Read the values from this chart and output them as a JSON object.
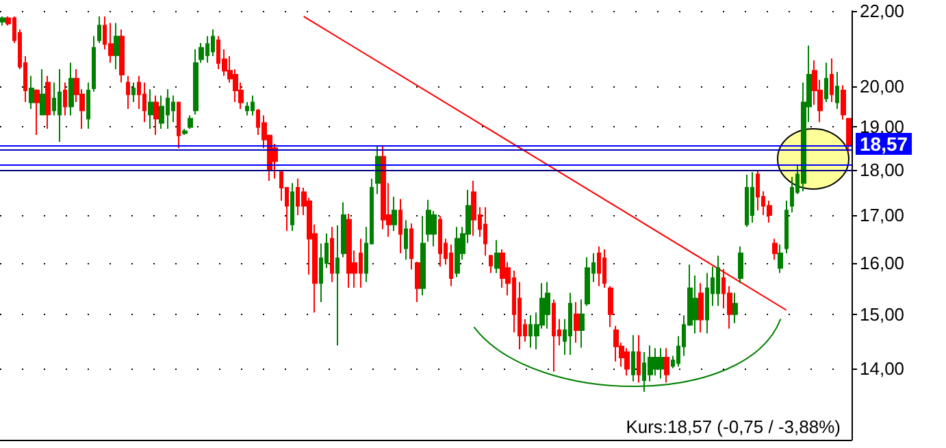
{
  "chart_data": {
    "type": "candlestick",
    "log": true,
    "grid": "y",
    "tick_labels": "y",
    "ylim": [
      12.8,
      22
    ],
    "yticks": [
      {
        "value": 14,
        "label": "14,00"
      },
      {
        "value": 15,
        "label": "15,00"
      },
      {
        "value": 16,
        "label": "16,00"
      },
      {
        "value": 17,
        "label": "17,00"
      },
      {
        "value": 18,
        "label": "18,00"
      },
      {
        "value": 19,
        "label": "19,00"
      },
      {
        "value": 20,
        "label": "20,00"
      },
      {
        "value": 22,
        "label": "22,00"
      }
    ],
    "categories": [
      null,
      null,
      null,
      null,
      null,
      null,
      null,
      null,
      null,
      null,
      null,
      null,
      null,
      null,
      null,
      null,
      null,
      null,
      null,
      null,
      null,
      null,
      null,
      null,
      null,
      null,
      null,
      null,
      null,
      null,
      null,
      null,
      null,
      null,
      null,
      null,
      null,
      null,
      null,
      null,
      null,
      null,
      null,
      null,
      null,
      null,
      null,
      null,
      null,
      null,
      null,
      null,
      null,
      null,
      null,
      null,
      null,
      null,
      null,
      null,
      null,
      null,
      null,
      null,
      null,
      null,
      null,
      null,
      null,
      null,
      null,
      null,
      null,
      null,
      null,
      null,
      null,
      null,
      null,
      null,
      null,
      null,
      null,
      null,
      null,
      null,
      null,
      null,
      null,
      null,
      null,
      null,
      null,
      null,
      null,
      null,
      null,
      null,
      null,
      null,
      null,
      null,
      null,
      null,
      null,
      null,
      null,
      null,
      null,
      null,
      null,
      null,
      null,
      null,
      null,
      null,
      null,
      null,
      null,
      null,
      null,
      null,
      null,
      null,
      null,
      null,
      null,
      null,
      null,
      null,
      null,
      null,
      null,
      null,
      null,
      null,
      null,
      null,
      null,
      null,
      null,
      null,
      null,
      null,
      null,
      null,
      null,
      null,
      null,
      null
    ],
    "ohlc": [
      [
        21.7,
        21.85,
        21.6,
        21.8
      ],
      [
        21.8,
        21.85,
        21.6,
        21.65
      ],
      [
        21.8,
        21.85,
        21.13,
        21.2
      ],
      [
        21.4,
        21.49,
        20.44,
        20.5
      ],
      [
        20.6,
        20.78,
        19.61,
        19.9
      ],
      [
        19.6,
        20.27,
        19.44,
        19.95
      ],
      [
        19.9,
        19.93,
        18.81,
        19.6
      ],
      [
        19.3,
        20.44,
        19.28,
        19.8
      ],
      [
        20.1,
        20.27,
        18.96,
        19.3
      ],
      [
        19.4,
        20.1,
        19.28,
        19.7
      ],
      [
        19.3,
        20.44,
        18.65,
        19.85
      ],
      [
        19.9,
        20.1,
        19.28,
        19.5
      ],
      [
        19.5,
        20.61,
        19.28,
        20.2
      ],
      [
        20.2,
        20.44,
        19.61,
        19.8
      ],
      [
        19.8,
        19.93,
        18.96,
        19.4
      ],
      [
        19.2,
        20.1,
        18.96,
        19.9
      ],
      [
        19.95,
        21.31,
        19.87,
        21.0
      ],
      [
        21.2,
        21.85,
        21.13,
        21.6
      ],
      [
        21.6,
        21.85,
        20.96,
        21.1
      ],
      [
        21.1,
        21.67,
        20.61,
        20.8
      ],
      [
        20.8,
        21.67,
        20.44,
        21.3
      ],
      [
        21.3,
        21.49,
        20.1,
        20.3
      ],
      [
        20.1,
        20.27,
        19.44,
        19.8
      ],
      [
        19.8,
        20.1,
        19.61,
        19.95
      ],
      [
        20.1,
        20.27,
        19.44,
        19.8
      ],
      [
        19.8,
        20.1,
        19.12,
        19.4
      ],
      [
        19.3,
        19.93,
        18.96,
        19.6
      ],
      [
        19.6,
        19.77,
        18.81,
        19.2
      ],
      [
        19.1,
        19.77,
        18.96,
        19.5
      ],
      [
        19.3,
        19.93,
        18.96,
        19.7
      ],
      [
        19.4,
        19.77,
        19.12,
        19.6
      ],
      [
        19.6,
        19.61,
        18.5,
        18.8
      ],
      [
        18.85,
        18.96,
        18.81,
        18.9
      ],
      [
        19.0,
        19.28,
        18.96,
        19.2
      ],
      [
        19.4,
        20.96,
        19.3,
        20.6
      ],
      [
        20.7,
        21.13,
        20.61,
        21.0
      ],
      [
        20.8,
        21.31,
        20.61,
        21.1
      ],
      [
        20.9,
        21.49,
        20.78,
        21.3
      ],
      [
        21.2,
        21.31,
        20.44,
        20.6
      ],
      [
        20.7,
        20.96,
        20.27,
        20.4
      ],
      [
        20.4,
        20.78,
        20.1,
        20.2
      ],
      [
        20.3,
        20.44,
        19.61,
        19.9
      ],
      [
        19.9,
        20.1,
        19.44,
        19.6
      ],
      [
        19.4,
        19.61,
        19.28,
        19.5
      ],
      [
        19.4,
        19.77,
        19.28,
        19.6
      ],
      [
        19.4,
        19.44,
        18.81,
        19.0
      ],
      [
        19.1,
        19.28,
        18.5,
        18.7
      ],
      [
        18.8,
        18.81,
        17.75,
        18.0
      ],
      [
        18.5,
        18.6,
        17.8,
        18.2
      ],
      [
        17.95,
        17.96,
        17.31,
        17.6
      ],
      [
        17.6,
        17.6,
        16.66,
        17.2
      ],
      [
        16.8,
        17.7,
        16.66,
        17.5
      ],
      [
        17.6,
        17.8,
        17.0,
        17.2
      ],
      [
        17.5,
        17.6,
        17.0,
        17.2
      ],
      [
        17.3,
        17.37,
        15.77,
        16.5
      ],
      [
        16.6,
        16.8,
        15.03,
        15.6
      ],
      [
        15.6,
        16.4,
        15.23,
        16.1
      ],
      [
        16.0,
        16.61,
        15.9,
        16.4
      ],
      [
        16.5,
        16.75,
        15.62,
        15.8
      ],
      [
        15.8,
        16.78,
        14.42,
        16.1
      ],
      [
        16.2,
        17.28,
        16.12,
        17.0
      ],
      [
        16.9,
        17.03,
        15.51,
        15.8
      ],
      [
        16.0,
        16.26,
        15.51,
        15.8
      ],
      [
        16.2,
        16.5,
        15.51,
        15.8
      ],
      [
        15.8,
        16.75,
        15.62,
        16.4
      ],
      [
        16.4,
        17.8,
        16.38,
        17.6
      ],
      [
        17.7,
        18.56,
        17.46,
        18.3
      ],
      [
        18.3,
        18.56,
        16.7,
        16.9
      ],
      [
        17.0,
        17.7,
        16.54,
        16.8
      ],
      [
        16.8,
        17.4,
        16.66,
        17.1
      ],
      [
        17.1,
        17.35,
        16.2,
        16.6
      ],
      [
        16.3,
        16.89,
        16.07,
        16.7
      ],
      [
        16.7,
        16.82,
        15.87,
        16.1
      ],
      [
        16.0,
        16.03,
        15.23,
        15.5
      ],
      [
        15.5,
        16.98,
        15.36,
        16.4
      ],
      [
        16.6,
        17.33,
        16.44,
        17.1
      ],
      [
        16.6,
        17.09,
        16.34,
        17.0
      ],
      [
        16.9,
        16.98,
        15.93,
        16.2
      ],
      [
        16.4,
        16.5,
        15.97,
        16.1
      ],
      [
        16.2,
        16.38,
        15.54,
        15.7
      ],
      [
        15.8,
        16.75,
        15.72,
        16.5
      ],
      [
        16.2,
        16.75,
        16.07,
        16.6
      ],
      [
        16.6,
        17.55,
        16.41,
        17.2
      ],
      [
        17.5,
        17.75,
        16.56,
        16.9
      ],
      [
        17.0,
        17.17,
        16.54,
        16.7
      ],
      [
        16.8,
        17.17,
        16.15,
        16.4
      ],
      [
        16.15,
        16.15,
        15.8,
        15.95
      ],
      [
        15.9,
        16.47,
        15.8,
        16.2
      ],
      [
        16.2,
        16.28,
        15.51,
        15.7
      ],
      [
        15.9,
        16.02,
        15.36,
        15.6
      ],
      [
        15.7,
        15.85,
        14.66,
        15.0
      ],
      [
        15.3,
        15.62,
        14.35,
        14.6
      ],
      [
        14.8,
        14.91,
        14.49,
        14.6
      ],
      [
        14.6,
        14.98,
        14.38,
        14.8
      ],
      [
        14.6,
        15.03,
        14.35,
        14.8
      ],
      [
        14.8,
        15.6,
        14.73,
        15.3
      ],
      [
        15.0,
        15.62,
        14.73,
        15.4
      ],
      [
        15.2,
        15.28,
        13.95,
        14.6
      ],
      [
        14.7,
        14.91,
        14.42,
        14.6
      ],
      [
        14.5,
        14.91,
        14.25,
        14.7
      ],
      [
        14.6,
        15.41,
        14.25,
        15.2
      ],
      [
        15.0,
        15.23,
        14.47,
        14.7
      ],
      [
        14.7,
        15.28,
        14.38,
        15.0
      ],
      [
        15.2,
        16.12,
        15.16,
        15.9
      ],
      [
        15.8,
        16.2,
        15.62,
        16.0
      ],
      [
        16.2,
        16.34,
        15.54,
        15.8
      ],
      [
        16.1,
        16.28,
        15.51,
        15.6
      ],
      [
        15.5,
        15.54,
        14.76,
        15.0
      ],
      [
        14.7,
        14.78,
        14.13,
        14.4
      ],
      [
        14.4,
        14.47,
        14.04,
        14.2
      ],
      [
        14.3,
        14.37,
        13.88,
        14.0
      ],
      [
        13.9,
        14.61,
        13.78,
        14.3
      ],
      [
        14.3,
        14.61,
        13.76,
        13.9
      ],
      [
        13.8,
        14.3,
        13.6,
        14.1
      ],
      [
        13.9,
        14.42,
        13.78,
        14.2
      ],
      [
        14.0,
        14.37,
        13.88,
        14.2
      ],
      [
        14.0,
        14.37,
        13.83,
        14.2
      ],
      [
        14.2,
        14.37,
        13.76,
        13.9
      ],
      [
        14.05,
        14.23,
        14.01,
        14.15
      ],
      [
        14.1,
        14.59,
        14.04,
        14.4
      ],
      [
        14.4,
        14.98,
        14.23,
        14.8
      ],
      [
        14.8,
        15.97,
        14.78,
        15.5
      ],
      [
        14.9,
        15.75,
        14.64,
        15.3
      ],
      [
        15.4,
        15.6,
        14.66,
        14.9
      ],
      [
        14.9,
        15.8,
        14.64,
        15.5
      ],
      [
        15.4,
        15.93,
        15.16,
        15.7
      ],
      [
        15.4,
        16.15,
        15.16,
        15.9
      ],
      [
        15.7,
        15.88,
        15.11,
        15.4
      ],
      [
        15.4,
        15.54,
        14.73,
        15.0
      ],
      [
        15.0,
        15.41,
        14.83,
        15.2
      ],
      [
        15.7,
        16.34,
        15.6,
        16.2
      ],
      [
        16.8,
        17.89,
        16.75,
        17.6
      ],
      [
        17.0,
        17.95,
        16.84,
        17.6
      ],
      [
        17.9,
        17.98,
        17.1,
        17.4
      ],
      [
        17.4,
        17.52,
        17.0,
        17.2
      ],
      [
        17.2,
        17.31,
        16.84,
        17.0
      ],
      [
        16.4,
        16.5,
        16.07,
        16.2
      ],
      [
        15.9,
        16.38,
        15.8,
        16.2
      ],
      [
        16.3,
        17.31,
        16.2,
        17.1
      ],
      [
        17.2,
        17.84,
        17.06,
        17.6
      ],
      [
        17.5,
        18.1,
        17.46,
        17.9
      ],
      [
        17.7,
        20.1,
        17.52,
        19.6
      ],
      [
        19.5,
        21.06,
        19.12,
        20.3
      ],
      [
        20.4,
        20.67,
        19.54,
        19.9
      ],
      [
        19.9,
        20.17,
        19.12,
        19.4
      ],
      [
        19.7,
        20.61,
        19.61,
        20.2
      ],
      [
        20.3,
        20.72,
        19.61,
        19.8
      ],
      [
        19.6,
        20.37,
        19.44,
        20.0
      ],
      [
        19.9,
        20.03,
        19.18,
        19.3
      ],
      [
        19.2,
        19.22,
        18.4,
        18.57
      ]
    ],
    "colors": [
      "#008000",
      "#ff0000",
      "#ff0000",
      "#ff0000",
      "#ff0000",
      "#008000",
      "#ff0000",
      "#008000",
      "#ff0000",
      "#008000",
      "#008000",
      "#ff0000",
      "#008000",
      "#ff0000",
      "#ff0000",
      "#008000",
      "#008000",
      "#008000",
      "#ff0000",
      "#ff0000",
      "#008000",
      "#ff0000",
      "#ff0000",
      "#008000",
      "#ff0000",
      "#ff0000",
      "#008000",
      "#ff0000",
      "#008000",
      "#008000",
      "#008000",
      "#ff0000",
      "#008000",
      "#008000",
      "#008000",
      "#008000",
      "#008000",
      "#008000",
      "#ff0000",
      "#ff0000",
      "#ff0000",
      "#ff0000",
      "#ff0000",
      "#008000",
      "#008000",
      "#ff0000",
      "#ff0000",
      "#ff0000",
      "#ff0000",
      "#ff0000",
      "#ff0000",
      "#008000",
      "#ff0000",
      "#ff0000",
      "#ff0000",
      "#ff0000",
      "#008000",
      "#008000",
      "#ff0000",
      "#008000",
      "#008000",
      "#ff0000",
      "#ff0000",
      "#ff0000",
      "#008000",
      "#008000",
      "#008000",
      "#ff0000",
      "#ff0000",
      "#008000",
      "#ff0000",
      "#008000",
      "#ff0000",
      "#ff0000",
      "#008000",
      "#008000",
      "#008000",
      "#ff0000",
      "#ff0000",
      "#ff0000",
      "#008000",
      "#008000",
      "#008000",
      "#ff0000",
      "#ff0000",
      "#ff0000",
      "#ff0000",
      "#008000",
      "#ff0000",
      "#ff0000",
      "#ff0000",
      "#ff0000",
      "#ff0000",
      "#008000",
      "#008000",
      "#008000",
      "#008000",
      "#ff0000",
      "#ff0000",
      "#008000",
      "#008000",
      "#ff0000",
      "#008000",
      "#008000",
      "#008000",
      "#ff0000",
      "#ff0000",
      "#ff0000",
      "#ff0000",
      "#ff0000",
      "#ff0000",
      "#008000",
      "#ff0000",
      "#008000",
      "#008000",
      "#008000",
      "#008000",
      "#ff0000",
      "#008000",
      "#008000",
      "#008000",
      "#008000",
      "#008000",
      "#ff0000",
      "#008000",
      "#008000",
      "#008000",
      "#ff0000",
      "#ff0000",
      "#008000",
      "#008000",
      "#008000",
      "#008000",
      "#ff0000",
      "#ff0000",
      "#ff0000",
      "#ff0000",
      "#008000",
      "#008000",
      "#008000",
      "#008000",
      "#008000",
      "#008000",
      "#ff0000",
      "#ff0000",
      "#008000",
      "#ff0000",
      "#008000",
      "#ff0000",
      "#ff0000"
    ],
    "ref_lines": [
      {
        "axis": "y",
        "value": 18.55,
        "color": "#0000ff"
      },
      {
        "axis": "y",
        "value": 18.47,
        "color": "#0000c0"
      },
      {
        "axis": "y",
        "value": 18.13,
        "color": "#0000ff"
      },
      {
        "axis": "y",
        "value": 17.99,
        "color": "#000080"
      }
    ],
    "annotations": [
      {
        "text": "18,57",
        "y": 18.57
      },
      "Kurs:18,57 (-0,75 / -3,88%)"
    ]
  }
}
